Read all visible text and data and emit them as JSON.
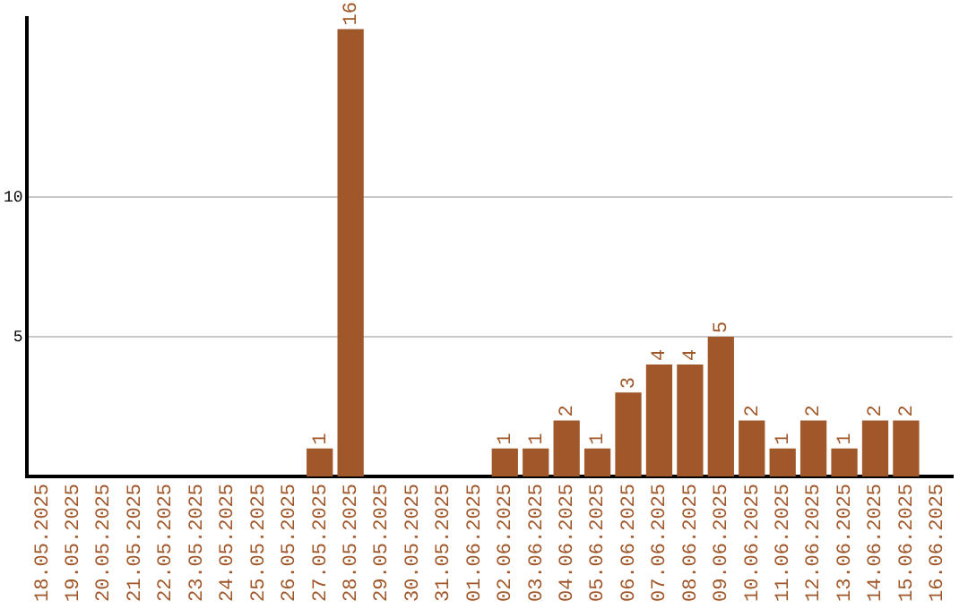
{
  "chart_data": {
    "type": "bar",
    "categories": [
      "18.05.2025",
      "19.05.2025",
      "20.05.2025",
      "21.05.2025",
      "22.05.2025",
      "23.05.2025",
      "24.05.2025",
      "25.05.2025",
      "26.05.2025",
      "27.05.2025",
      "28.05.2025",
      "29.05.2025",
      "30.05.2025",
      "31.05.2025",
      "01.06.2025",
      "02.06.2025",
      "03.06.2025",
      "04.06.2025",
      "05.06.2025",
      "06.06.2025",
      "07.06.2025",
      "08.06.2025",
      "09.06.2025",
      "10.06.2025",
      "11.06.2025",
      "12.06.2025",
      "13.06.2025",
      "14.06.2025",
      "15.06.2025",
      "16.06.2025"
    ],
    "values": [
      0,
      0,
      0,
      0,
      0,
      0,
      0,
      0,
      0,
      1,
      16,
      0,
      0,
      0,
      0,
      1,
      1,
      2,
      1,
      3,
      4,
      4,
      5,
      2,
      1,
      2,
      1,
      2,
      2,
      0
    ],
    "value_labels": [
      null,
      null,
      null,
      null,
      null,
      null,
      null,
      null,
      null,
      "1",
      "16",
      null,
      null,
      null,
      null,
      "1",
      "1",
      "2",
      "1",
      "3",
      "4",
      "4",
      "5",
      "2",
      "1",
      "2",
      "1",
      "2",
      "2",
      null
    ],
    "color": "#a0572a",
    "ylim": [
      0,
      16.4
    ],
    "yticks": [
      5,
      10
    ],
    "grid": "y",
    "legend": false
  }
}
